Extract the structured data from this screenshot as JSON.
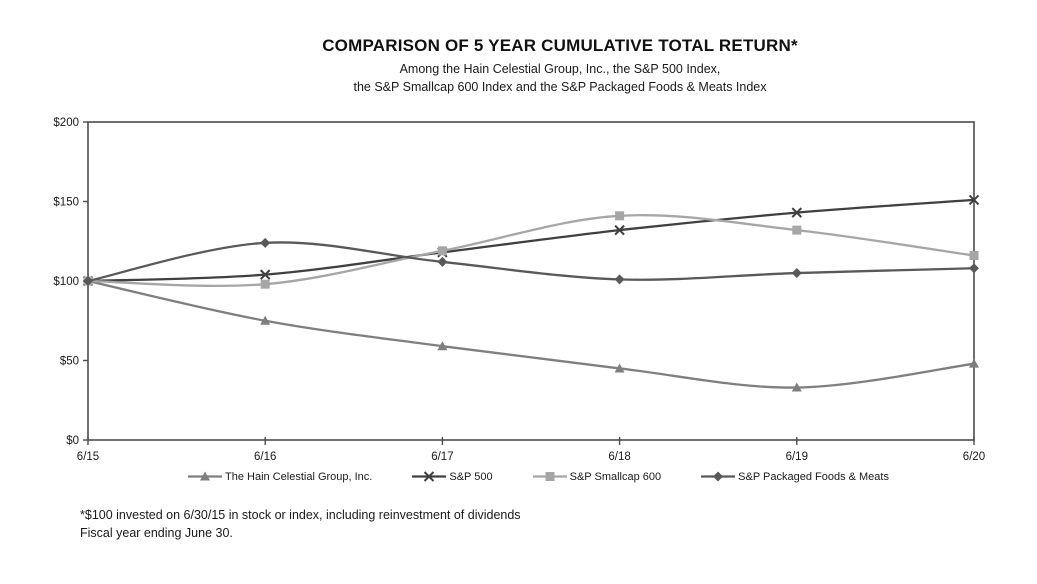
{
  "title": "COMPARISON OF 5 YEAR CUMULATIVE TOTAL RETURN*",
  "subtitle_line1": "Among the Hain Celestial Group, Inc., the S&P 500 Index,",
  "subtitle_line2": "the S&P Smallcap 600 Index and the S&P Packaged Foods & Meats Index",
  "footnote_line1": "*$100 invested on 6/30/15 in stock or index, including reinvestment of dividends",
  "footnote_line2": "Fiscal year ending June 30.",
  "colors": {
    "axis": "#4d4d4d",
    "text": "#1a1a1a"
  },
  "chart_data": {
    "type": "line",
    "title": "COMPARISON OF 5 YEAR CUMULATIVE TOTAL RETURN*",
    "x": [
      "6/15",
      "6/16",
      "6/17",
      "6/18",
      "6/19",
      "6/20"
    ],
    "series": [
      {
        "name": "The Hain Celestial Group, Inc.",
        "marker": "triangle",
        "color": "#7f7f7f",
        "values": [
          100,
          75,
          59,
          45,
          33,
          48
        ]
      },
      {
        "name": "S&P 500",
        "marker": "x",
        "color": "#404040",
        "values": [
          100,
          104,
          118,
          132,
          143,
          151
        ]
      },
      {
        "name": "S&P Smallcap 600",
        "marker": "square",
        "color": "#a6a6a6",
        "values": [
          100,
          98,
          119,
          141,
          132,
          116
        ]
      },
      {
        "name": "S&P Packaged Foods & Meats",
        "marker": "diamond",
        "color": "#595959",
        "values": [
          100,
          124,
          112,
          101,
          105,
          108
        ]
      }
    ],
    "y_ticks": [
      {
        "label": "$200",
        "value": 200
      },
      {
        "label": "$150",
        "value": 150
      },
      {
        "label": "$100",
        "value": 100
      },
      {
        "label": "$50",
        "value": 50
      },
      {
        "label": "$0",
        "value": 0
      }
    ],
    "ylim": [
      0,
      200
    ],
    "grid": false,
    "smooth": true,
    "legend_position": "bottom"
  }
}
